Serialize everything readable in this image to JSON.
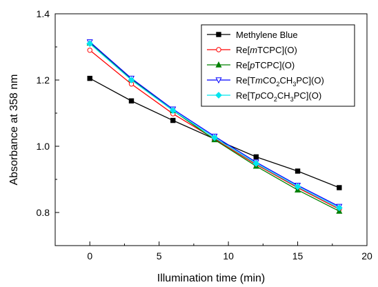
{
  "chart_data": {
    "type": "line",
    "xlabel": "Illumination time (min)",
    "ylabel": "Absorbance at 358 nm",
    "xlim": [
      -2.5,
      20
    ],
    "ylim": [
      0.7,
      1.4
    ],
    "xticks": [
      0,
      5,
      10,
      15,
      20
    ],
    "yticks": [
      0.8,
      1.0,
      1.2,
      1.4
    ],
    "xtick_labels": [
      "0",
      "5",
      "10",
      "15",
      "20"
    ],
    "ytick_labels": [
      "0.8",
      "1.0",
      "1.2",
      "1.4"
    ],
    "grid": false,
    "legend_position": "top-right",
    "x": [
      0,
      3,
      6,
      9,
      12,
      15,
      18
    ],
    "series": [
      {
        "name": "Methylene Blue",
        "color": "#000000",
        "marker": "square",
        "values": [
          1.205,
          1.137,
          1.078,
          1.022,
          0.968,
          0.925,
          0.875
        ]
      },
      {
        "name": "Re[mTCPC](O)",
        "color": "#ff0000",
        "marker": "circle-open",
        "values": [
          1.29,
          1.188,
          1.098,
          1.022,
          0.945,
          0.875,
          0.81
        ]
      },
      {
        "name": "Re[pTCPC](O)",
        "color": "#008000",
        "marker": "triangle",
        "values": [
          1.312,
          1.203,
          1.108,
          1.02,
          0.94,
          0.868,
          0.804
        ]
      },
      {
        "name": "Re[TmCO2CH3PC](O)",
        "color": "#0000ff",
        "marker": "triangle-down-open",
        "values": [
          1.315,
          1.205,
          1.112,
          1.03,
          0.952,
          0.882,
          0.818
        ]
      },
      {
        "name": "Re[TpCO2CH3PC](O)",
        "color": "#00e5ee",
        "marker": "diamond",
        "values": [
          1.31,
          1.2,
          1.108,
          1.026,
          0.948,
          0.878,
          0.814
        ]
      }
    ],
    "legend": [
      {
        "parts": [
          {
            "t": "Methylene Blue"
          }
        ]
      },
      {
        "parts": [
          {
            "t": "Re["
          },
          {
            "t": "m",
            "s": "italic"
          },
          {
            "t": "TCPC](O)"
          }
        ]
      },
      {
        "parts": [
          {
            "t": "Re["
          },
          {
            "t": "p",
            "s": "italic"
          },
          {
            "t": "TCPC](O)"
          }
        ]
      },
      {
        "parts": [
          {
            "t": "Re[T"
          },
          {
            "t": "m",
            "s": "italic"
          },
          {
            "t": "CO"
          },
          {
            "t": "2",
            "s": "sub"
          },
          {
            "t": "CH"
          },
          {
            "t": "3",
            "s": "sub"
          },
          {
            "t": "PC](O)"
          }
        ]
      },
      {
        "parts": [
          {
            "t": "Re[T"
          },
          {
            "t": "p",
            "s": "italic"
          },
          {
            "t": "CO"
          },
          {
            "t": "2",
            "s": "sub"
          },
          {
            "t": "CH"
          },
          {
            "t": "3",
            "s": "sub"
          },
          {
            "t": "PC](O)"
          }
        ]
      }
    ]
  }
}
